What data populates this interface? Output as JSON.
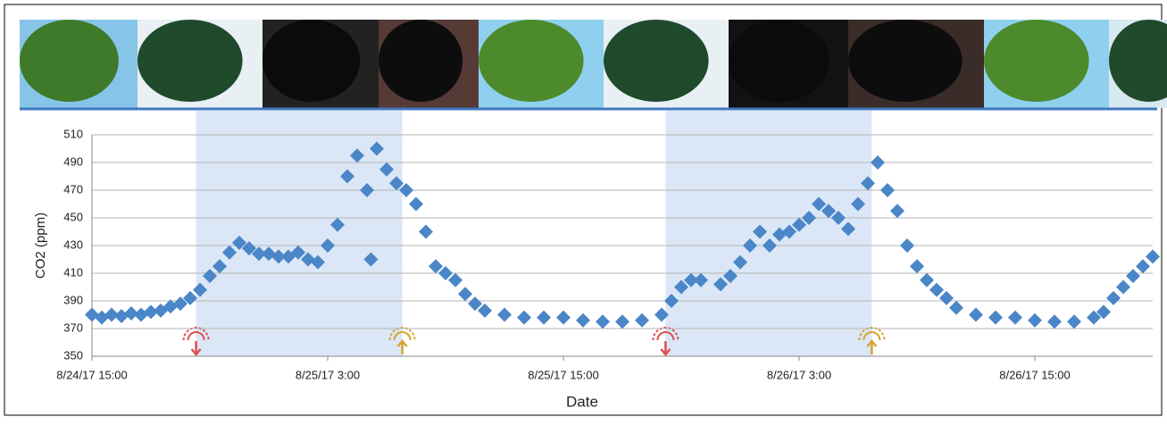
{
  "chart_data": {
    "type": "scatter",
    "x_label": "Date",
    "y_label": "CO2 (ppm)",
    "color": "#4a86c8",
    "grid": true,
    "xlim": [
      0,
      54
    ],
    "ylim": [
      350,
      510
    ],
    "xticks": [
      {
        "value": 0,
        "label": "8/24/17 15:00"
      },
      {
        "value": 12,
        "label": "8/25/17 3:00"
      },
      {
        "value": 24,
        "label": "8/25/17 15:00"
      },
      {
        "value": 36,
        "label": "8/26/17 3:00"
      },
      {
        "value": 48,
        "label": "8/26/17 15:00"
      }
    ],
    "yticks": [
      350,
      370,
      390,
      410,
      430,
      450,
      470,
      490,
      510
    ],
    "night_bands": [
      [
        5.3,
        15.8
      ],
      [
        29.2,
        39.7
      ]
    ],
    "x": [
      0,
      0.5,
      1,
      1.5,
      2,
      2.5,
      3,
      3.5,
      4,
      4.5,
      5,
      5.5,
      6,
      6.5,
      7,
      7.5,
      8,
      8.5,
      9,
      9.5,
      10,
      10.5,
      11,
      11.5,
      12,
      12.5,
      13,
      13.5,
      14,
      14.2,
      14.5,
      15,
      15.5,
      16,
      16.5,
      17,
      17.5,
      18,
      18.5,
      19,
      19.5,
      20,
      21,
      22,
      23,
      24,
      25,
      26,
      27,
      28,
      29,
      29.5,
      30,
      30.5,
      31,
      32,
      32.5,
      33,
      33.5,
      34,
      34.5,
      35,
      35.5,
      36,
      36.5,
      37,
      37.5,
      38,
      38.5,
      39,
      39.5,
      40,
      40.5,
      41,
      41.5,
      42,
      42.5,
      43,
      43.5,
      44,
      45,
      46,
      47,
      48,
      49,
      50,
      51,
      51.5,
      52,
      52.5,
      53,
      53.5,
      54
    ],
    "values": [
      380,
      378,
      380,
      379,
      381,
      380,
      382,
      383,
      386,
      388,
      392,
      398,
      408,
      415,
      425,
      432,
      428,
      424,
      424,
      422,
      422,
      425,
      420,
      418,
      430,
      445,
      480,
      495,
      470,
      420,
      500,
      485,
      475,
      470,
      460,
      440,
      415,
      410,
      405,
      395,
      388,
      383,
      380,
      378,
      378,
      378,
      376,
      375,
      375,
      376,
      380,
      390,
      400,
      405,
      405,
      402,
      408,
      418,
      430,
      440,
      430,
      438,
      440,
      445,
      450,
      460,
      455,
      450,
      442,
      460,
      475,
      490,
      470,
      455,
      430,
      415,
      405,
      398,
      392,
      385,
      380,
      378,
      378,
      376,
      375,
      375,
      378,
      382,
      392,
      400,
      408,
      415,
      422
    ]
  }
}
